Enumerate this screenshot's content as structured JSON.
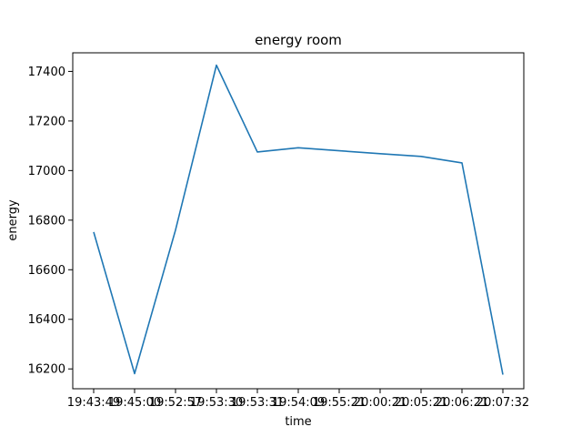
{
  "chart_data": {
    "type": "line",
    "title": "energy room",
    "xlabel": "time",
    "ylabel": "energy",
    "categories": [
      "19:43:49",
      "19:45:00",
      "19:52:57",
      "19:53:30",
      "19:53:31",
      "19:54:09",
      "19:55:21",
      "20:00:21",
      "20:05:21",
      "20:06:21",
      "20:07:32"
    ],
    "series": [
      {
        "values": [
          16752,
          16181,
          16760,
          17425,
          17075,
          17092,
          17080,
          17068,
          17057,
          17031,
          16177
        ],
        "color": "#1f77b4"
      }
    ],
    "ylim": [
      16120,
      17475
    ],
    "yticks": [
      16200,
      16400,
      16600,
      16800,
      17000,
      17200,
      17400
    ],
    "grid": false,
    "legend": "none"
  }
}
